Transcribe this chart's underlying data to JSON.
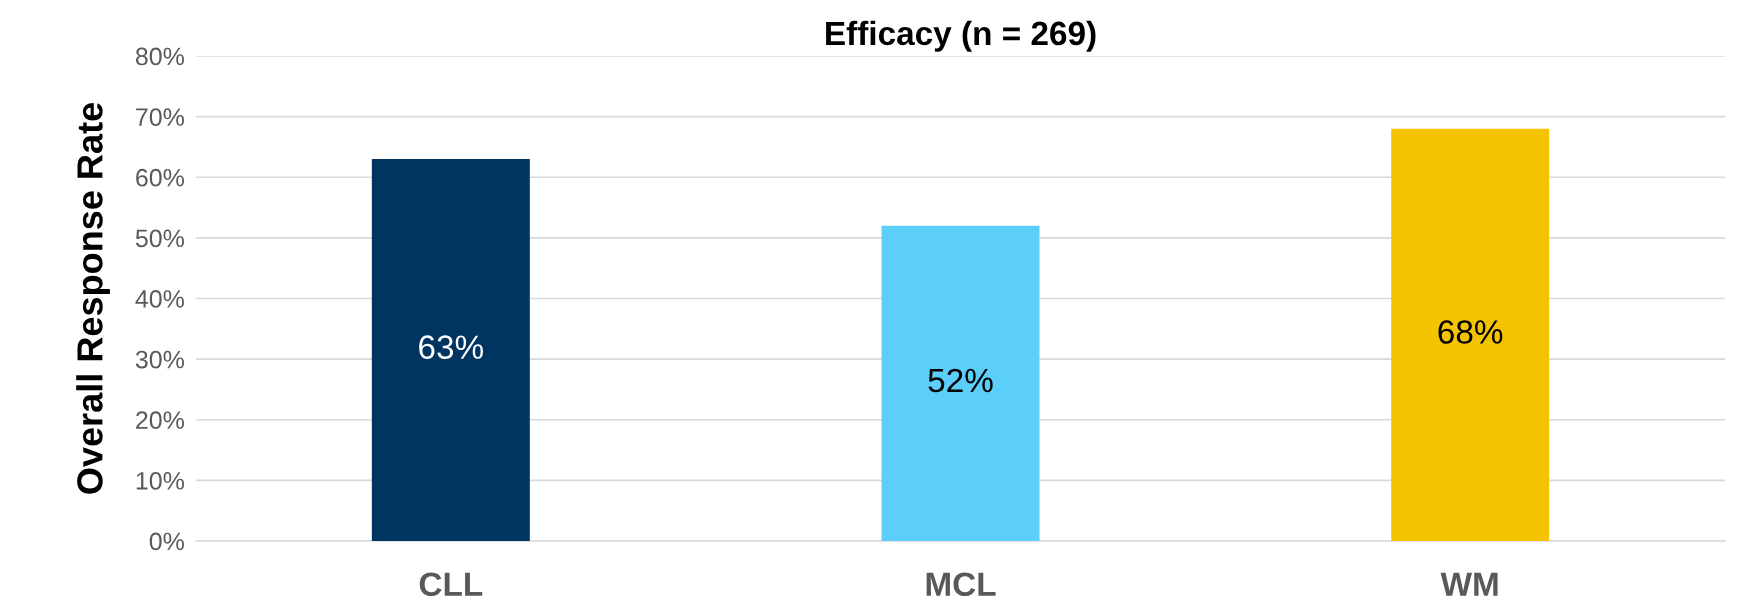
{
  "chart_data": {
    "type": "bar",
    "title": "Efficacy (n = 269)",
    "ylabel": "Overall Response Rate",
    "categories": [
      "CLL",
      "MCL",
      "WM"
    ],
    "values": [
      63,
      52,
      68
    ],
    "colors": [
      "#003461",
      "#5bcefa",
      "#f5c400"
    ],
    "value_labels": [
      "63%",
      "52%",
      "68%"
    ],
    "ylim": [
      0,
      80
    ],
    "yticks": [
      {
        "value": 0,
        "label": "0%"
      },
      {
        "value": 10,
        "label": "10%"
      },
      {
        "value": 20,
        "label": "20%"
      },
      {
        "value": 30,
        "label": "30%"
      },
      {
        "value": 40,
        "label": "40%"
      },
      {
        "value": 50,
        "label": "50%"
      },
      {
        "value": 60,
        "label": "60%"
      },
      {
        "value": 70,
        "label": "70%"
      },
      {
        "value": 80,
        "label": "80%"
      }
    ],
    "grid": "y",
    "legend": false
  }
}
